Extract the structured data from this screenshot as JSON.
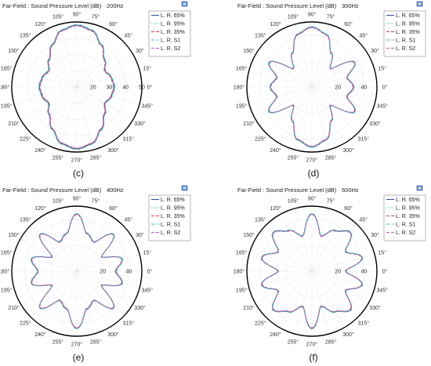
{
  "chart_data": [
    {
      "type": "polar",
      "title": "Far-Field : Sound Pressure Level (dB)",
      "frequency": "200Hz",
      "caption": "(c)",
      "radial_ticks": [
        20,
        30,
        40,
        50
      ],
      "rlim": [
        10,
        50
      ],
      "angle_ticks": [
        "0°",
        "15°",
        "30°",
        "45°",
        "60°",
        "75°",
        "90°",
        "105°",
        "120°",
        "135°",
        "150°",
        "165°",
        "180°",
        "195°",
        "210°",
        "225°",
        "240°",
        "255°",
        "270°",
        "285°",
        "300°",
        "315°",
        "330°",
        "345°"
      ],
      "legend": [
        {
          "name": "L. R. 65%",
          "color": "#2f4fa8",
          "dash": "solid"
        },
        {
          "name": "L. R. 95%",
          "color": "#4dbbb8",
          "dash": "dotted"
        },
        {
          "name": "L. R. 35%",
          "color": "#d04040",
          "dash": "dashed"
        },
        {
          "name": "L. R. S1",
          "color": "#3ab7b7",
          "dash": "dashdot"
        },
        {
          "name": "L. R. S2",
          "color": "#c060c0",
          "dash": "dashed"
        }
      ],
      "pattern": {
        "angles_deg": [
          0,
          15,
          30,
          45,
          60,
          75,
          90,
          105,
          120,
          135,
          150,
          165,
          180,
          195,
          210,
          225,
          240,
          255,
          270,
          285,
          300,
          315,
          330,
          345
        ],
        "spl_db": [
          33,
          32,
          30,
          34,
          40,
          46,
          48,
          46,
          40,
          34,
          30,
          32,
          33,
          32,
          30,
          34,
          40,
          46,
          48,
          46,
          40,
          34,
          30,
          32
        ]
      }
    },
    {
      "type": "polar",
      "title": "Far-Field : Sound Pressure Level (dB)",
      "frequency": "300Hz",
      "caption": "(d)",
      "radial_ticks": [
        20,
        40
      ],
      "rlim": [
        0,
        50
      ],
      "angle_ticks": [
        "0°",
        "15°",
        "30°",
        "45°",
        "60°",
        "75°",
        "90°",
        "105°",
        "120°",
        "135°",
        "150°",
        "165°",
        "180°",
        "195°",
        "210°",
        "225°",
        "240°",
        "255°",
        "270°",
        "285°",
        "300°",
        "315°",
        "330°",
        "345°"
      ],
      "legend": [
        {
          "name": "L. R. 65%",
          "color": "#2f4fa8",
          "dash": "solid"
        },
        {
          "name": "L. R. 95%",
          "color": "#4dbbb8",
          "dash": "dotted"
        },
        {
          "name": "L. R. 35%",
          "color": "#d04040",
          "dash": "dashed"
        },
        {
          "name": "L. R. S1",
          "color": "#3ab7b7",
          "dash": "dashdot"
        },
        {
          "name": "L. R. S2",
          "color": "#c060c0",
          "dash": "dashed"
        }
      ],
      "pattern": {
        "angles_deg": [
          0,
          15,
          30,
          45,
          60,
          75,
          90,
          105,
          120,
          135,
          150,
          165,
          180,
          195,
          210,
          225,
          240,
          255,
          270,
          285,
          300,
          315,
          330,
          345
        ],
        "spl_db": [
          32,
          28,
          38,
          20,
          30,
          42,
          46,
          42,
          30,
          20,
          38,
          28,
          32,
          28,
          38,
          20,
          30,
          42,
          46,
          42,
          30,
          20,
          38,
          28
        ]
      }
    },
    {
      "type": "polar",
      "title": "Far-Field : Sound Pressure Level (dB)",
      "frequency": "400Hz",
      "caption": "(e)",
      "radial_ticks": [
        20,
        40
      ],
      "rlim": [
        0,
        50
      ],
      "angle_ticks": [
        "0°",
        "15°",
        "30°",
        "45°",
        "60°",
        "75°",
        "90°",
        "105°",
        "120°",
        "135°",
        "150°",
        "165°",
        "180°",
        "195°",
        "210°",
        "225°",
        "240°",
        "255°",
        "270°",
        "285°",
        "300°",
        "315°",
        "330°",
        "345°"
      ],
      "legend": [
        {
          "name": "L. R. 65%",
          "color": "#2f4fa8",
          "dash": "solid"
        },
        {
          "name": "L. R. 95%",
          "color": "#4dbbb8",
          "dash": "dotted"
        },
        {
          "name": "L. R. 35%",
          "color": "#d04040",
          "dash": "dashed"
        },
        {
          "name": "L. R. S1",
          "color": "#3ab7b7",
          "dash": "dashdot"
        },
        {
          "name": "L. R. S2",
          "color": "#c060c0",
          "dash": "dashed"
        }
      ],
      "pattern": {
        "angles_deg": [
          0,
          15,
          30,
          45,
          60,
          75,
          90,
          105,
          120,
          135,
          150,
          165,
          180,
          195,
          210,
          225,
          240,
          255,
          270,
          285,
          300,
          315,
          330,
          345
        ],
        "spl_db": [
          30,
          36,
          22,
          40,
          26,
          30,
          44,
          30,
          26,
          40,
          22,
          36,
          30,
          36,
          22,
          40,
          26,
          30,
          44,
          30,
          26,
          40,
          22,
          36
        ]
      }
    },
    {
      "type": "polar",
      "title": "Far-Field : Sound Pressure Level (dB)",
      "frequency": "600Hz",
      "caption": "(f)",
      "radial_ticks": [
        20,
        40
      ],
      "rlim": [
        0,
        50
      ],
      "angle_ticks": [
        "0°",
        "15°",
        "30°",
        "45°",
        "60°",
        "75°",
        "90°",
        "105°",
        "120°",
        "135°",
        "150°",
        "165°",
        "180°",
        "195°",
        "210°",
        "225°",
        "240°",
        "255°",
        "270°",
        "285°",
        "300°",
        "315°",
        "330°",
        "345°"
      ],
      "legend": [
        {
          "name": "L. R. 65%",
          "color": "#2f4fa8",
          "dash": "solid"
        },
        {
          "name": "L. R. 95%",
          "color": "#4dbbb8",
          "dash": "dotted"
        },
        {
          "name": "L. R. 35%",
          "color": "#d04040",
          "dash": "dashed"
        },
        {
          "name": "L. R. S1",
          "color": "#3ab7b7",
          "dash": "dashdot"
        },
        {
          "name": "L. R. S2",
          "color": "#c060c0",
          "dash": "dashed"
        }
      ],
      "pattern": {
        "angles_deg": [
          0,
          15,
          30,
          45,
          60,
          75,
          90,
          105,
          120,
          135,
          150,
          165,
          180,
          195,
          210,
          225,
          240,
          255,
          270,
          285,
          300,
          315,
          330,
          345
        ],
        "spl_db": [
          26,
          40,
          30,
          42,
          36,
          28,
          44,
          28,
          36,
          42,
          30,
          40,
          26,
          40,
          30,
          42,
          36,
          28,
          44,
          28,
          36,
          42,
          30,
          40
        ]
      }
    }
  ]
}
